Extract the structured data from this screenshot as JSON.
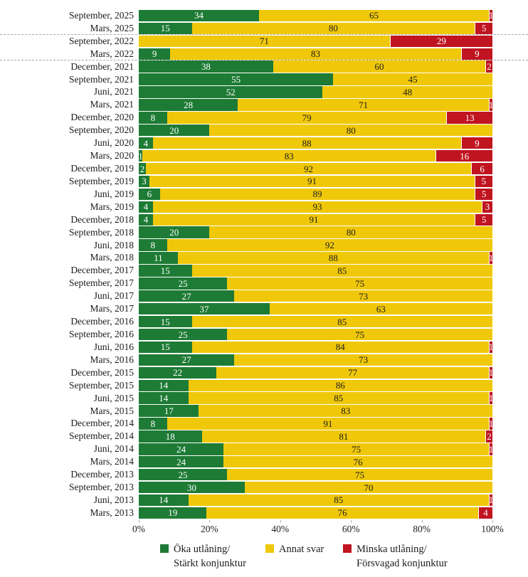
{
  "chart_data": {
    "type": "bar",
    "orientation": "horizontal",
    "stacked": true,
    "unit": "percent",
    "title": "",
    "xlabel": "",
    "ylabel": "",
    "xlim": [
      0,
      100
    ],
    "x_ticks": [
      "0%",
      "20%",
      "40%",
      "60%",
      "80%",
      "100%"
    ],
    "grid": false,
    "legend_position": "bottom",
    "separator_after_rows": [
      2,
      4
    ],
    "categories": [
      "September, 2025",
      "Mars, 2025",
      "September, 2022",
      "Mars, 2022",
      "December, 2021",
      "September, 2021",
      "Juni, 2021",
      "Mars, 2021",
      "December, 2020",
      "September, 2020",
      "Juni, 2020",
      "Mars, 2020",
      "December, 2019",
      "September, 2019",
      "Juni, 2019",
      "Mars, 2019",
      "December, 2018",
      "September, 2018",
      "Juni, 2018",
      "Mars, 2018",
      "December, 2017",
      "September, 2017",
      "Juni, 2017",
      "Mars, 2017",
      "December, 2016",
      "September, 2016",
      "Juni, 2016",
      "Mars, 2016",
      "December, 2015",
      "September, 2015",
      "Juni, 2015",
      "Mars, 2015",
      "December, 2014",
      "September, 2014",
      "Juni, 2014",
      "Mars, 2014",
      "December, 2013",
      "September, 2013",
      "Juni, 2013",
      "Mars, 2013"
    ],
    "series": [
      {
        "key": "oka",
        "name": "Öka utlåning/ Stärkt konjunktur",
        "color": "#1E7B35",
        "text_color": "#ffffff",
        "values": [
          34,
          15,
          0,
          9,
          38,
          55,
          52,
          28,
          8,
          20,
          4,
          1,
          2,
          3,
          6,
          4,
          4,
          20,
          8,
          11,
          15,
          25,
          27,
          37,
          15,
          25,
          15,
          27,
          22,
          14,
          14,
          17,
          8,
          18,
          24,
          24,
          25,
          30,
          14,
          19
        ]
      },
      {
        "key": "annat",
        "name": "Annat svar",
        "color": "#F0C80A",
        "text_color": "#1c1c1c",
        "values": [
          65,
          80,
          71,
          83,
          60,
          45,
          48,
          71,
          79,
          80,
          88,
          83,
          92,
          91,
          89,
          93,
          91,
          80,
          92,
          88,
          85,
          75,
          73,
          63,
          85,
          75,
          84,
          73,
          77,
          86,
          85,
          83,
          91,
          81,
          75,
          76,
          75,
          70,
          85,
          76
        ]
      },
      {
        "key": "minska",
        "name": "Minska utlåning/ Försvagad konjunktur",
        "color": "#C01421",
        "text_color": "#ffffff",
        "values": [
          1,
          5,
          29,
          9,
          2,
          0,
          0,
          1,
          13,
          0,
          9,
          16,
          6,
          5,
          5,
          3,
          5,
          0,
          0,
          1,
          0,
          0,
          0,
          0,
          0,
          0,
          1,
          0,
          1,
          0,
          1,
          0,
          1,
          2,
          1,
          0,
          0,
          0,
          1,
          4
        ]
      }
    ],
    "legend": [
      {
        "line1": "Öka utlåning/",
        "line2": "Stärkt konjunktur",
        "color": "#1E7B35"
      },
      {
        "line1": "Annat svar",
        "line2": "",
        "color": "#F0C80A"
      },
      {
        "line1": "Minska utlåning/",
        "line2": "Försvagad konjunktur",
        "color": "#C01421"
      }
    ]
  }
}
